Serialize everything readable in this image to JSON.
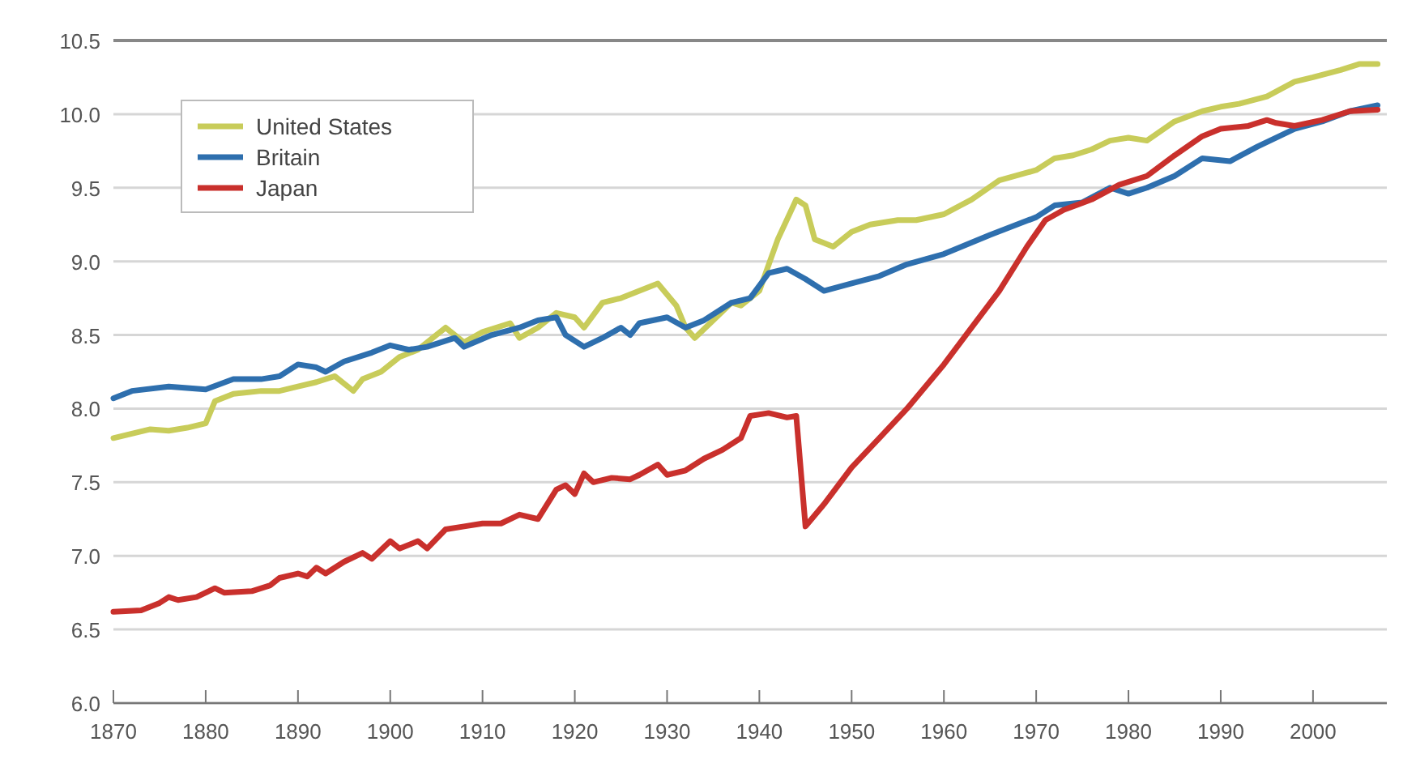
{
  "chart_data": {
    "type": "line",
    "xlim": [
      1870,
      2008
    ],
    "xticks": [
      1870,
      1880,
      1890,
      1900,
      1910,
      1920,
      1930,
      1940,
      1950,
      1960,
      1970,
      1980,
      1990,
      2000
    ],
    "ylim": [
      6.0,
      10.5
    ],
    "yticks": [
      {
        "value": 6,
        "label": "6.0"
      },
      {
        "value": 6.5,
        "label": "6.5"
      },
      {
        "value": 7,
        "label": "7.0"
      },
      {
        "value": 7.5,
        "label": "7.5"
      },
      {
        "value": 8,
        "label": "8.0"
      },
      {
        "value": 8.5,
        "label": "8.5"
      },
      {
        "value": 9,
        "label": "9.0"
      },
      {
        "value": 9.5,
        "label": "9.5"
      },
      {
        "value": 10,
        "label": "10.0"
      },
      {
        "value": 10.5,
        "label": "10.5"
      }
    ],
    "grid": "y",
    "legend": "top left",
    "marker": "none",
    "line_style": "solid",
    "series": [
      {
        "name": "United States",
        "color": "#c8cc5a",
        "x": [
          1870,
          1872,
          1874,
          1876,
          1878,
          1880,
          1881,
          1883,
          1886,
          1888,
          1890,
          1892,
          1894,
          1896,
          1897,
          1899,
          1901,
          1903,
          1905,
          1906,
          1908,
          1910,
          1913,
          1914,
          1916,
          1918,
          1920,
          1921,
          1923,
          1925,
          1927,
          1929,
          1931,
          1932,
          1933,
          1935,
          1937,
          1938,
          1940,
          1942,
          1944,
          1945,
          1946,
          1948,
          1950,
          1952,
          1955,
          1957,
          1960,
          1963,
          1966,
          1970,
          1972,
          1974,
          1976,
          1978,
          1980,
          1982,
          1985,
          1988,
          1990,
          1992,
          1995,
          1998,
          2000,
          2003,
          2005,
          2007
        ],
        "values": [
          7.8,
          7.83,
          7.86,
          7.85,
          7.87,
          7.9,
          8.05,
          8.1,
          8.12,
          8.12,
          8.15,
          8.18,
          8.22,
          8.12,
          8.2,
          8.25,
          8.35,
          8.4,
          8.5,
          8.55,
          8.45,
          8.52,
          8.58,
          8.48,
          8.55,
          8.65,
          8.62,
          8.55,
          8.72,
          8.75,
          8.8,
          8.85,
          8.7,
          8.55,
          8.48,
          8.6,
          8.72,
          8.7,
          8.8,
          9.15,
          9.42,
          9.38,
          9.15,
          9.1,
          9.2,
          9.25,
          9.28,
          9.28,
          9.32,
          9.42,
          9.55,
          9.62,
          9.7,
          9.72,
          9.76,
          9.82,
          9.84,
          9.82,
          9.95,
          10.02,
          10.05,
          10.07,
          10.12,
          10.22,
          10.25,
          10.3,
          10.34,
          10.34
        ]
      },
      {
        "name": "Britain",
        "color": "#2e6fae",
        "x": [
          1870,
          1872,
          1876,
          1880,
          1883,
          1886,
          1888,
          1890,
          1892,
          1893,
          1895,
          1898,
          1900,
          1902,
          1904,
          1907,
          1908,
          1911,
          1914,
          1916,
          1918,
          1919,
          1921,
          1923,
          1925,
          1926,
          1927,
          1930,
          1932,
          1934,
          1937,
          1939,
          1941,
          1943,
          1945,
          1947,
          1950,
          1953,
          1956,
          1960,
          1965,
          1970,
          1972,
          1975,
          1978,
          1980,
          1982,
          1985,
          1988,
          1991,
          1994,
          1998,
          2001,
          2004,
          2007
        ],
        "values": [
          8.07,
          8.12,
          8.15,
          8.13,
          8.2,
          8.2,
          8.22,
          8.3,
          8.28,
          8.25,
          8.32,
          8.38,
          8.43,
          8.4,
          8.42,
          8.48,
          8.42,
          8.5,
          8.55,
          8.6,
          8.62,
          8.5,
          8.42,
          8.48,
          8.55,
          8.5,
          8.58,
          8.62,
          8.55,
          8.6,
          8.72,
          8.75,
          8.92,
          8.95,
          8.88,
          8.8,
          8.85,
          8.9,
          8.98,
          9.05,
          9.18,
          9.3,
          9.38,
          9.4,
          9.5,
          9.46,
          9.5,
          9.58,
          9.7,
          9.68,
          9.78,
          9.9,
          9.95,
          10.02,
          10.06
        ]
      },
      {
        "name": "Japan",
        "color": "#c9302c",
        "x": [
          1870,
          1873,
          1875,
          1876,
          1877,
          1879,
          1881,
          1882,
          1885,
          1887,
          1888,
          1890,
          1891,
          1892,
          1893,
          1895,
          1897,
          1898,
          1900,
          1901,
          1903,
          1904,
          1906,
          1908,
          1910,
          1912,
          1914,
          1916,
          1918,
          1919,
          1920,
          1921,
          1922,
          1924,
          1926,
          1927,
          1929,
          1930,
          1932,
          1934,
          1936,
          1938,
          1939,
          1941,
          1943,
          1944,
          1945,
          1947,
          1950,
          1953,
          1956,
          1960,
          1963,
          1966,
          1969,
          1971,
          1973,
          1976,
          1979,
          1982,
          1985,
          1988,
          1990,
          1993,
          1995,
          1996,
          1998,
          2001,
          2004,
          2007
        ],
        "values": [
          6.62,
          6.63,
          6.68,
          6.72,
          6.7,
          6.72,
          6.78,
          6.75,
          6.76,
          6.8,
          6.85,
          6.88,
          6.86,
          6.92,
          6.88,
          6.96,
          7.02,
          6.98,
          7.1,
          7.05,
          7.1,
          7.05,
          7.18,
          7.2,
          7.22,
          7.22,
          7.28,
          7.25,
          7.45,
          7.48,
          7.42,
          7.56,
          7.5,
          7.53,
          7.52,
          7.55,
          7.62,
          7.55,
          7.58,
          7.66,
          7.72,
          7.8,
          7.95,
          7.97,
          7.94,
          7.95,
          7.2,
          7.35,
          7.6,
          7.8,
          8.0,
          8.3,
          8.55,
          8.8,
          9.1,
          9.28,
          9.35,
          9.42,
          9.52,
          9.58,
          9.72,
          9.85,
          9.9,
          9.92,
          9.96,
          9.94,
          9.92,
          9.96,
          10.02,
          10.03
        ]
      }
    ]
  }
}
